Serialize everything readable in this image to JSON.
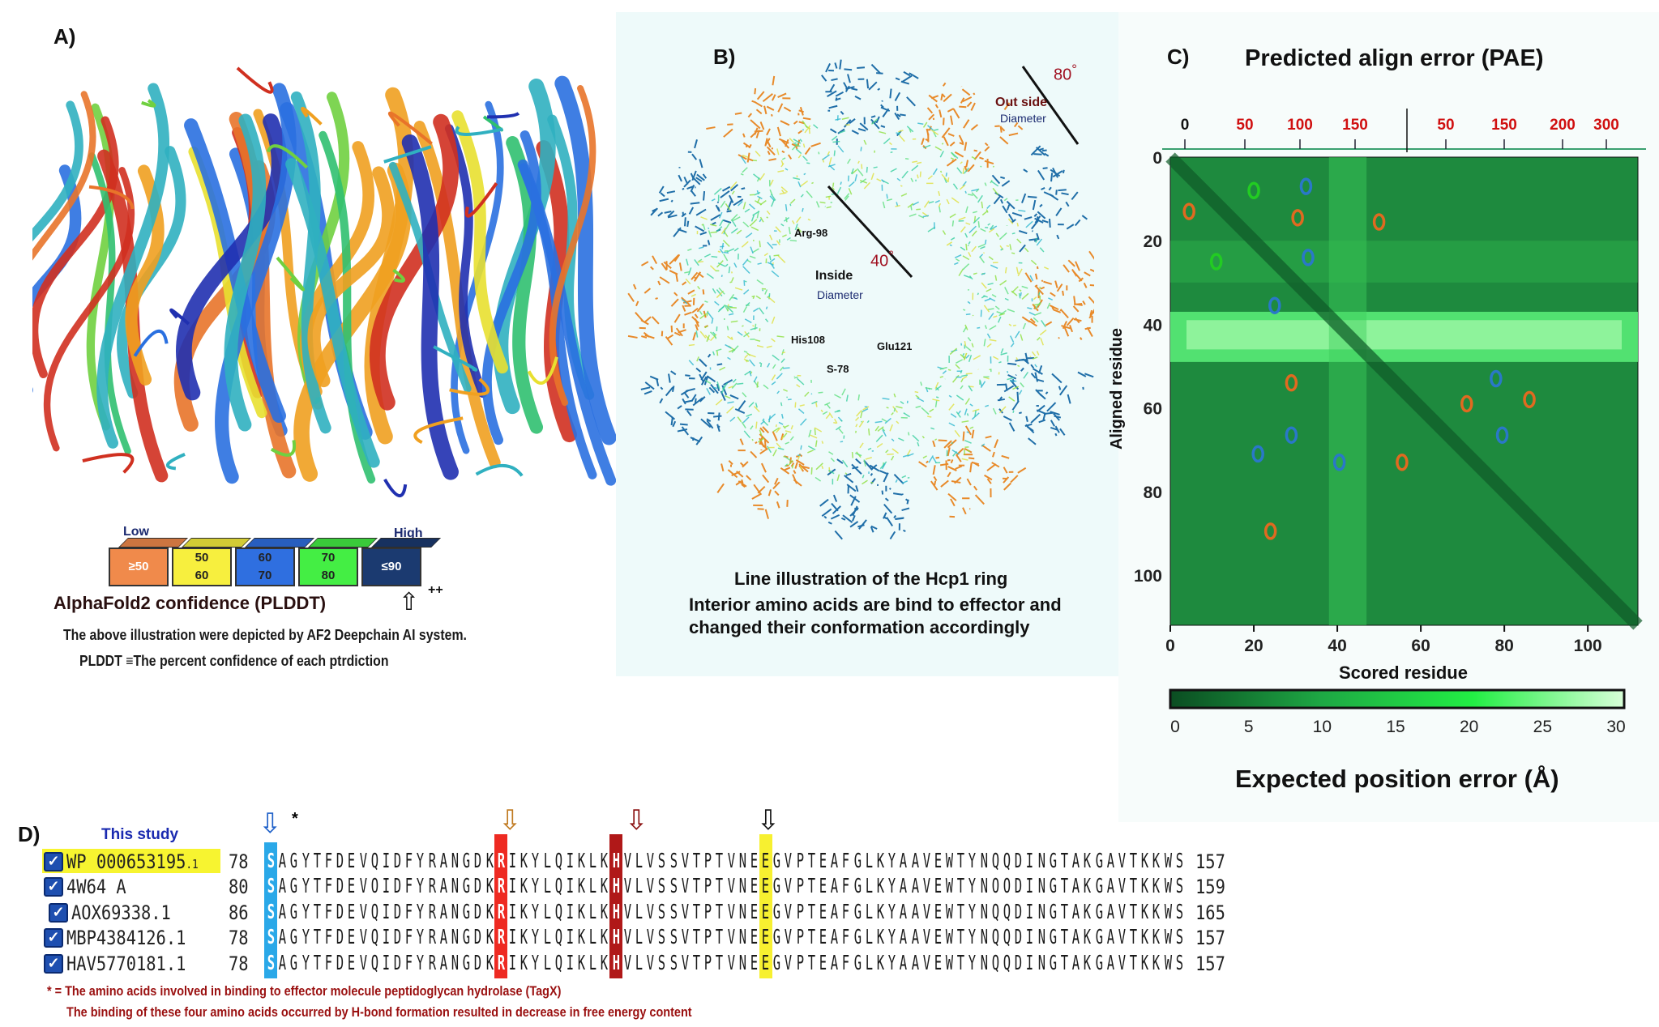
{
  "panel_a": {
    "label": "A)",
    "legend": {
      "low_label": "Low",
      "high_label": "High",
      "blocks": [
        {
          "text1": "≥50",
          "text2": "",
          "color": "#f08a4b"
        },
        {
          "text1": "50",
          "text2": "60",
          "color": "#f7ef3e"
        },
        {
          "text1": "60",
          "text2": "70",
          "color": "#2f6fe0"
        },
        {
          "text1": "70",
          "text2": "80",
          "color": "#44ee44"
        },
        {
          "text1": "≤90",
          "text2": "",
          "color": "#1b3a70"
        }
      ]
    },
    "confidence_title": "AlphaFold2 confidence (PLDDT)",
    "confidence_marks": "++",
    "note1": "The above illustration were depicted by AF2 Deepchain AI system.",
    "note2": "PLDDT ≡The percent confidence of each ptrdiction"
  },
  "panel_b": {
    "label": "B)",
    "outer_value": "80",
    "outer_unit": "°",
    "outer_label1": "Out side",
    "outer_label2": "Diameter",
    "inner_value": "40",
    "inner_unit": "°",
    "inner_label1": "Inside",
    "inner_label2": "Diameter",
    "residues": [
      "Arg-98",
      "His108",
      "Glu121",
      "S-78"
    ],
    "caption1": "Line illustration of the Hcp1 ring",
    "caption2": "Interior amino acids are bind to effector and",
    "caption3": "changed their conformation accordingly"
  },
  "chart_data": {
    "type": "heatmap",
    "label": "C)",
    "title": "Predicted align error (PAE)",
    "xlabel": "Scored residue",
    "ylabel": "Aligned residue",
    "xlim": [
      0,
      112
    ],
    "ylim": [
      0,
      112
    ],
    "x_ticks": [
      "0",
      "20",
      "40",
      "60",
      "80",
      "100"
    ],
    "y_ticks": [
      "0",
      "20",
      "40",
      "60",
      "80",
      "100"
    ],
    "top_axis_ticks": [
      "0",
      "50",
      "100",
      "150",
      "50",
      "150",
      "200",
      "300"
    ],
    "colorbar": {
      "label": "Expected position error (Å)",
      "ticks": [
        "0",
        "5",
        "10",
        "15",
        "20",
        "25",
        "30"
      ],
      "range": [
        0,
        30
      ],
      "colors": [
        "#0b4d22",
        "#1ea844",
        "#22ee44",
        "#d8ffd8"
      ]
    },
    "annotations": [
      {
        "x": 20,
        "y": 8,
        "color": "#22cc22"
      },
      {
        "x": 32.5,
        "y": 7,
        "color": "#2a78c8"
      },
      {
        "x": 4.5,
        "y": 13,
        "color": "#e06a20"
      },
      {
        "x": 30.5,
        "y": 14.5,
        "color": "#e06a20"
      },
      {
        "x": 50,
        "y": 15.5,
        "color": "#e06a20"
      },
      {
        "x": 11,
        "y": 25,
        "color": "#22cc22"
      },
      {
        "x": 33,
        "y": 24,
        "color": "#2a78c8"
      },
      {
        "x": 25,
        "y": 35.5,
        "color": "#2a78c8"
      },
      {
        "x": 29,
        "y": 54,
        "color": "#e06a20"
      },
      {
        "x": 78,
        "y": 53,
        "color": "#2a78c8"
      },
      {
        "x": 71,
        "y": 59,
        "color": "#e06a20"
      },
      {
        "x": 86,
        "y": 58,
        "color": "#e06a20"
      },
      {
        "x": 29,
        "y": 66.5,
        "color": "#2a78c8"
      },
      {
        "x": 79.5,
        "y": 66.5,
        "color": "#2a78c8"
      },
      {
        "x": 21,
        "y": 71,
        "color": "#2a78c8"
      },
      {
        "x": 40.5,
        "y": 73,
        "color": "#2a78c8"
      },
      {
        "x": 55.5,
        "y": 73,
        "color": "#e06a20"
      },
      {
        "x": 24,
        "y": 89.5,
        "color": "#e06a20"
      }
    ]
  },
  "panel_d": {
    "label": "D)",
    "this_study": "This study",
    "star": "*",
    "sequences": [
      {
        "name": "WP 000653195",
        "suffix": ".1",
        "start": "78",
        "seq": "SAGYTFDEVQIDFYRANGDKRIKYLQIKLKHVLVSSVTPTVNEEGVPTEAFGLKYAAVEWTYNQQDINGTAKGAVTKKWS",
        "end": "157",
        "checked": true
      },
      {
        "name": "4W64 A",
        "suffix": "",
        "start": "80",
        "seq": "SAGYTFDEVOIDFYRANGDKRIKYLQIKLKHVLVSSVTPTVNEEGVPTEAFGLKYAAVEWTYNOODINGTAKGAVTKKWS",
        "end": "159",
        "checked": true
      },
      {
        "name": "AOX69338.1",
        "suffix": "",
        "start": "86",
        "seq": "SAGYTFDEVQIDFYRANGDKRIKYLQIKLKHVLVSSVTPTVNEEGVPTEAFGLKYAAVEWTYNQQDINGTAKGAVTKKWS",
        "end": "165",
        "checked": true
      },
      {
        "name": "MBP4384126.1",
        "suffix": "",
        "start": "78",
        "seq": "SAGYTFDEVQIDFYRANGDKRIKYLQIKLKHVLVSSVTPTVNEEGVPTEAFGLKYAAVEWTYNQQDINGTAKGAVTKKWS",
        "end": "157",
        "checked": true
      },
      {
        "name": "HAV5770181.1",
        "suffix": "",
        "start": "78",
        "seq": "SAGYTFDEVQIDFYRANGDKRIKYLQIKLKHVLVSSVTPTVNEEGVPTEAFGLKYAAVEWTYNQQDINGTAKGAVTKKWS",
        "end": "157",
        "checked": true
      }
    ],
    "highlights": [
      {
        "residue": "S",
        "column": 0,
        "color": "#2aa8e8",
        "arrow_color": "#1d5fc8"
      },
      {
        "residue": "R",
        "column": 20,
        "color": "#ee2a22",
        "arrow_color": "#c07a20"
      },
      {
        "residue": "H",
        "column": 30,
        "color": "#b01818",
        "arrow_color": "#8a1010"
      },
      {
        "residue": "E",
        "column": 43,
        "color": "#f7f030",
        "arrow_color": "#111111"
      }
    ],
    "footnote1": "* = The amino acids involved in binding to effector molecule peptidoglycan hydrolase (TagX)",
    "footnote2": "The binding of these four amino acids occurred by H-bond formation resulted in decrease in free energy content"
  }
}
